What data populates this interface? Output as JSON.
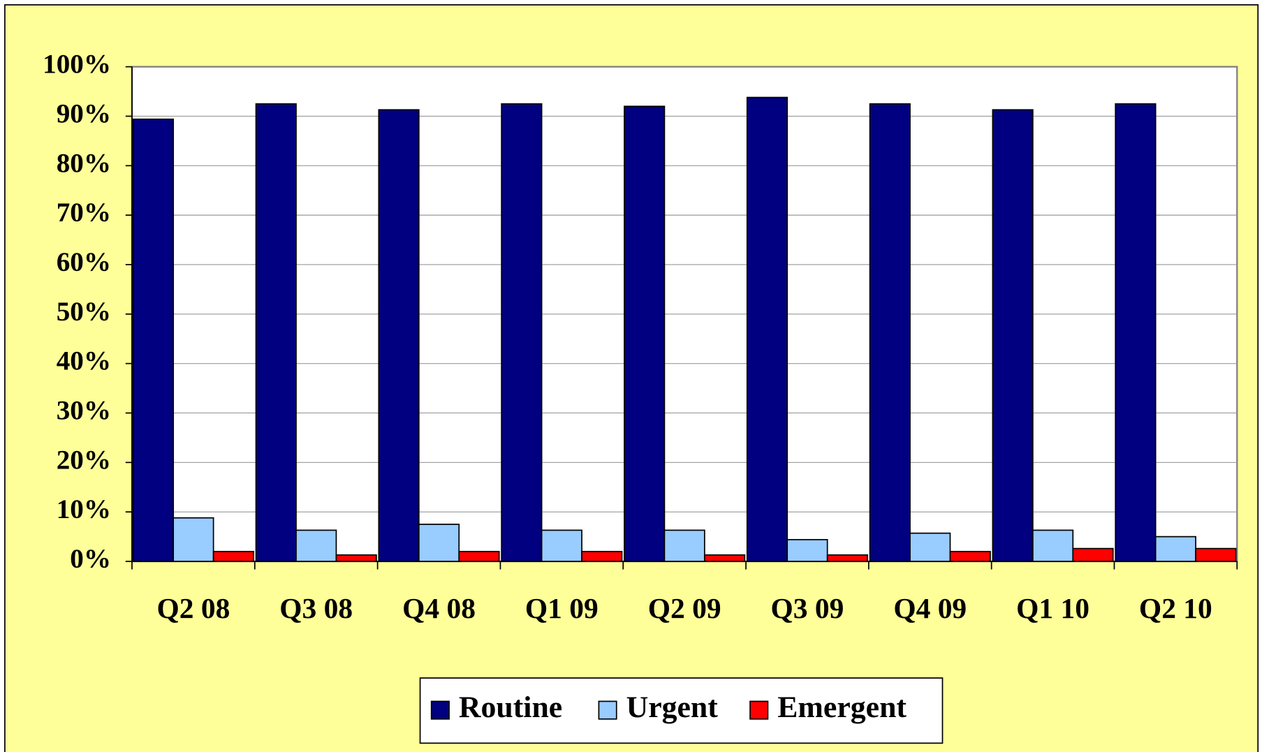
{
  "chart_data": {
    "type": "bar",
    "categories": [
      "Q2 08",
      "Q3 08",
      "Q4 08",
      "Q1 09",
      "Q2 09",
      "Q3 09",
      "Q4 09",
      "Q1 10",
      "Q2 10"
    ],
    "series": [
      {
        "name": "Routine",
        "color": "#000080",
        "values": [
          89.4,
          92.5,
          91.3,
          92.5,
          92,
          93.8,
          92.5,
          91.3,
          92.5
        ]
      },
      {
        "name": "Urgent",
        "color": "#99ccff",
        "values": [
          8.8,
          6.3,
          7.5,
          6.3,
          6.3,
          4.4,
          5.7,
          6.3,
          5
        ]
      },
      {
        "name": "Emergent",
        "color": "#ff0000",
        "values": [
          2,
          1.3,
          2,
          2,
          1.3,
          1.3,
          2,
          2.6,
          2.6
        ]
      }
    ],
    "ylim": [
      0,
      100
    ],
    "yticks": [
      {
        "value": 0,
        "label": "0%"
      },
      {
        "value": 10,
        "label": "10%"
      },
      {
        "value": 20,
        "label": "20%"
      },
      {
        "value": 30,
        "label": "30%"
      },
      {
        "value": 40,
        "label": "40%"
      },
      {
        "value": 50,
        "label": "50%"
      },
      {
        "value": 60,
        "label": "60%"
      },
      {
        "value": 70,
        "label": "70%"
      },
      {
        "value": 80,
        "label": "80%"
      },
      {
        "value": 90,
        "label": "90%"
      },
      {
        "value": 100,
        "label": "100%"
      }
    ],
    "grid": true,
    "legend": "bottom"
  }
}
